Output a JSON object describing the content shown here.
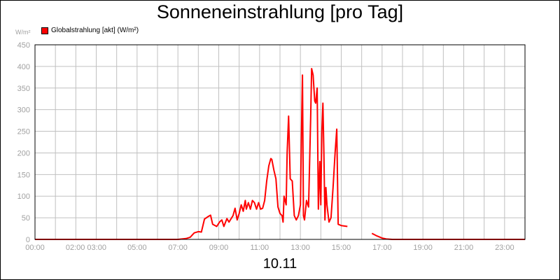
{
  "chart_data": {
    "type": "line",
    "title": "Sonneneinstrahlung [pro Tag]",
    "ylabel": "W/m²",
    "xlabel": "10.11",
    "ylim": [
      0,
      450
    ],
    "xlim": [
      0,
      24
    ],
    "y_ticks": [
      "0",
      "50",
      "100",
      "150",
      "200",
      "250",
      "300",
      "350",
      "400",
      "450"
    ],
    "y_tick_values": [
      0,
      50,
      100,
      150,
      200,
      250,
      300,
      350,
      400,
      450
    ],
    "x_ticks": [
      {
        "h": 0,
        "label": "00:00"
      },
      {
        "h": 2.5,
        "label": "02:00 03:00"
      },
      {
        "h": 5,
        "label": "05:00"
      },
      {
        "h": 7,
        "label": "07:00"
      },
      {
        "h": 9,
        "label": "09:00"
      },
      {
        "h": 11,
        "label": "11:00"
      },
      {
        "h": 13,
        "label": "13:00"
      },
      {
        "h": 15,
        "label": "15:00"
      },
      {
        "h": 17,
        "label": "17:00"
      },
      {
        "h": 19,
        "label": "19:00"
      },
      {
        "h": 21,
        "label": "21:00"
      },
      {
        "h": 23,
        "label": "23:00"
      }
    ],
    "grid_hours": [
      0,
      1,
      2,
      3,
      4,
      5,
      6,
      7,
      8,
      9,
      10,
      11,
      12,
      13,
      14,
      15,
      16,
      17,
      18,
      19,
      20,
      21,
      22,
      23
    ],
    "grid": true,
    "legend_position": "top-left",
    "colors": {
      "series": "#ff0000",
      "grid": "#c0c0c0",
      "axis": "#000000",
      "tick_text": "#a0a0a0"
    },
    "series": [
      {
        "name": "Globalstrahlung [akt] (W/m²)",
        "segments": [
          [
            [
              0,
              0
            ],
            [
              7.0,
              0
            ],
            [
              7.4,
              2
            ],
            [
              7.6,
              5
            ],
            [
              7.8,
              15
            ],
            [
              8.0,
              18
            ],
            [
              8.15,
              17
            ],
            [
              8.3,
              47
            ],
            [
              8.45,
              52
            ],
            [
              8.6,
              56
            ],
            [
              8.7,
              35
            ],
            [
              8.9,
              30
            ],
            [
              9.05,
              41
            ],
            [
              9.15,
              45
            ],
            [
              9.25,
              30
            ],
            [
              9.4,
              48
            ],
            [
              9.5,
              40
            ],
            [
              9.7,
              55
            ],
            [
              9.8,
              72
            ],
            [
              9.9,
              45
            ],
            [
              10.0,
              60
            ],
            [
              10.1,
              80
            ],
            [
              10.2,
              65
            ],
            [
              10.3,
              90
            ],
            [
              10.35,
              70
            ],
            [
              10.45,
              85
            ],
            [
              10.55,
              70
            ],
            [
              10.65,
              90
            ],
            [
              10.75,
              85
            ],
            [
              10.85,
              70
            ],
            [
              10.95,
              85
            ],
            [
              11.05,
              70
            ],
            [
              11.15,
              72
            ],
            [
              11.25,
              90
            ],
            [
              11.35,
              135
            ],
            [
              11.45,
              170
            ],
            [
              11.55,
              187
            ],
            [
              11.6,
              185
            ],
            [
              11.7,
              160
            ],
            [
              11.8,
              140
            ],
            [
              11.9,
              75
            ],
            [
              12.0,
              60
            ],
            [
              12.1,
              55
            ],
            [
              12.15,
              40
            ],
            [
              12.2,
              100
            ],
            [
              12.3,
              80
            ],
            [
              12.35,
              200
            ],
            [
              12.42,
              285
            ],
            [
              12.5,
              140
            ],
            [
              12.6,
              135
            ],
            [
              12.7,
              55
            ],
            [
              12.8,
              45
            ],
            [
              12.9,
              55
            ],
            [
              13.0,
              80
            ],
            [
              13.05,
              240
            ],
            [
              13.1,
              380
            ],
            [
              13.15,
              55
            ],
            [
              13.2,
              45
            ],
            [
              13.3,
              90
            ],
            [
              13.4,
              75
            ],
            [
              13.5,
              280
            ],
            [
              13.55,
              395
            ],
            [
              13.62,
              380
            ],
            [
              13.7,
              320
            ],
            [
              13.75,
              315
            ],
            [
              13.82,
              350
            ],
            [
              13.88,
              70
            ],
            [
              13.95,
              180
            ],
            [
              14.0,
              80
            ],
            [
              14.05,
              250
            ],
            [
              14.1,
              315
            ],
            [
              14.15,
              200
            ],
            [
              14.2,
              45
            ],
            [
              14.25,
              120
            ],
            [
              14.3,
              80
            ],
            [
              14.4,
              40
            ],
            [
              14.5,
              50
            ],
            [
              14.6,
              120
            ],
            [
              14.7,
              200
            ],
            [
              14.78,
              255
            ],
            [
              14.85,
              35
            ],
            [
              15.0,
              32
            ],
            [
              15.3,
              30
            ]
          ],
          [
            [
              16.5,
              14
            ],
            [
              16.75,
              8
            ],
            [
              17.0,
              3
            ],
            [
              17.2,
              1
            ],
            [
              17.5,
              0
            ],
            [
              24,
              0
            ]
          ]
        ]
      }
    ]
  }
}
